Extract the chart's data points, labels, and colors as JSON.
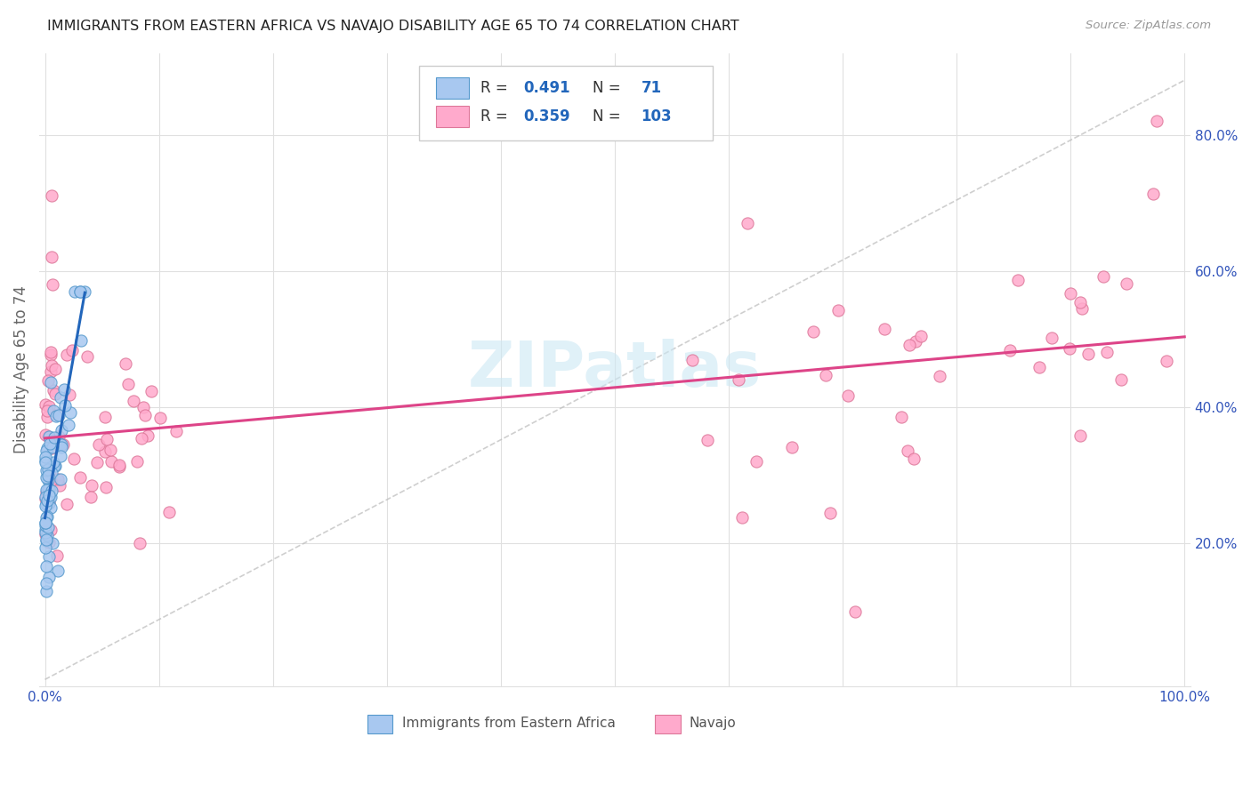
{
  "title": "IMMIGRANTS FROM EASTERN AFRICA VS NAVAJO DISABILITY AGE 65 TO 74 CORRELATION CHART",
  "source": "Source: ZipAtlas.com",
  "ylabel": "Disability Age 65 to 74",
  "blue_color_fill": "#a8c8f0",
  "blue_color_edge": "#5599cc",
  "pink_color_fill": "#ffaacc",
  "pink_color_edge": "#dd7799",
  "blue_line_color": "#2266bb",
  "pink_line_color": "#dd4488",
  "dash_line_color": "#bbbbbb",
  "watermark_color": "#cce8f4",
  "grid_color": "#e0e0e0",
  "tick_color": "#3355bb",
  "ylabel_color": "#666666",
  "title_color": "#222222",
  "source_color": "#999999",
  "legend_edge_color": "#cccccc",
  "legend_text_color": "#333333",
  "legend_val_color": "#2266bb",
  "xlim": [
    -0.005,
    1.005
  ],
  "ylim": [
    -0.01,
    0.92
  ],
  "xticks": [
    0.0,
    0.1,
    0.2,
    0.3,
    0.4,
    0.5,
    0.6,
    0.7,
    0.8,
    0.9,
    1.0
  ],
  "yticks_right": [
    0.2,
    0.4,
    0.6,
    0.8
  ],
  "ytick_labels_right": [
    "20.0%",
    "40.0%",
    "60.0%",
    "80.0%"
  ],
  "xtick_labels": [
    "0.0%",
    "",
    "",
    "",
    "",
    "",
    "",
    "",
    "",
    "",
    "100.0%"
  ],
  "blue_seed": 42,
  "pink_seed": 7,
  "n_blue": 71,
  "n_pink": 103
}
